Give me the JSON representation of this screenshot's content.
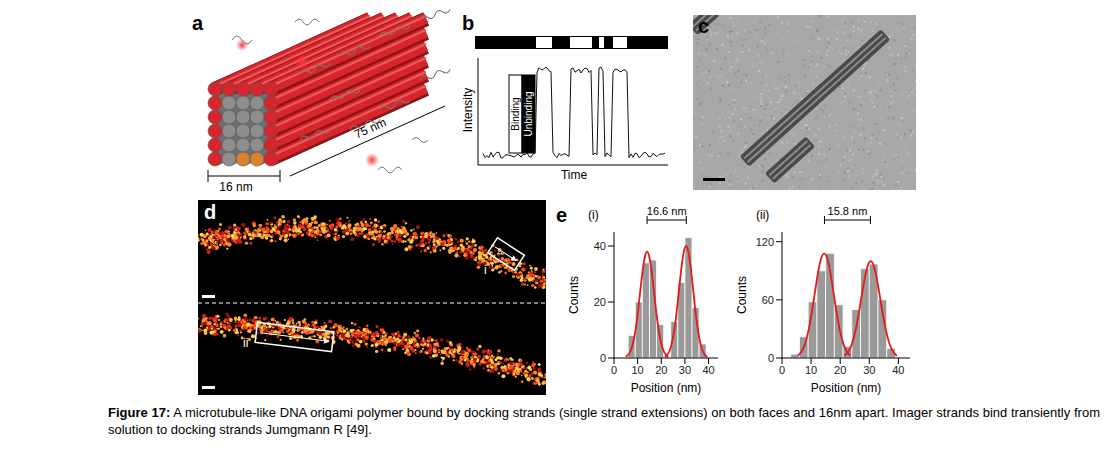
{
  "panels": {
    "a": {
      "label": "a",
      "width_label": "16 nm",
      "length_label": "75 nm"
    },
    "b": {
      "label": "b",
      "ylabel": "Intensity",
      "xlabel": "Time",
      "annotations": [
        "Binding",
        "Unbinding"
      ]
    },
    "c": {
      "label": "c"
    },
    "d": {
      "label": "d",
      "regions": [
        "i",
        "ii"
      ]
    },
    "e": {
      "label": "e"
    }
  },
  "chart_data": [
    {
      "type": "histogram",
      "title": "(i)",
      "xlabel": "Position (nm)",
      "ylabel": "Counts",
      "bins": [
        6,
        9,
        12,
        15,
        18,
        21,
        24,
        27,
        30,
        33,
        36,
        39
      ],
      "counts": [
        8,
        20,
        34,
        35,
        12,
        0,
        13,
        27,
        43,
        18,
        5
      ],
      "color": "#9a9a9a",
      "xlim": [
        0,
        44
      ],
      "xticks": [
        0,
        10,
        20,
        30,
        40
      ],
      "ylim": [
        0,
        45
      ],
      "yticks": [
        0,
        20,
        40
      ],
      "fits": [
        {
          "color": "#e31a1c",
          "x": [
            5,
            6,
            7,
            8,
            9,
            10,
            11,
            12,
            13,
            14,
            15,
            16,
            17,
            18,
            19,
            20,
            21,
            22,
            23
          ],
          "values": [
            0.4,
            1.1,
            2.5,
            5.1,
            9.5,
            15.6,
            23.1,
            30.4,
            35.9,
            38,
            35.9,
            30.4,
            23.1,
            15.6,
            9.5,
            5.1,
            2.5,
            1.1,
            0.4
          ]
        },
        {
          "color": "#e31a1c",
          "x": [
            21.5,
            22.5,
            23.5,
            24.5,
            25.5,
            26.5,
            27.5,
            28.5,
            29.5,
            30.5,
            31.5,
            32.5,
            33.5,
            34.5,
            35.5,
            36.5,
            37.5,
            38.5,
            39.5
          ],
          "values": [
            0.4,
            1.1,
            2.6,
            5.4,
            10,
            16.4,
            24.3,
            32,
            37.8,
            40,
            37.8,
            32,
            24.3,
            16.4,
            10,
            5.4,
            2.6,
            1.1,
            0.4
          ]
        }
      ],
      "annotation": {
        "text": "16.6 nm",
        "x": [
          14,
          30.6
        ]
      }
    },
    {
      "type": "histogram",
      "title": "(ii)",
      "xlabel": "Position (nm)",
      "ylabel": "Counts",
      "bins": [
        3,
        6,
        9,
        12,
        15,
        18,
        21,
        24,
        27,
        30,
        33,
        36,
        39
      ],
      "counts": [
        4,
        22,
        58,
        90,
        108,
        55,
        12,
        50,
        92,
        97,
        60,
        10
      ],
      "color": "#9a9a9a",
      "xlim": [
        0,
        44
      ],
      "xticks": [
        0,
        10,
        20,
        30,
        40
      ],
      "ylim": [
        0,
        130
      ],
      "yticks": [
        0,
        60,
        120
      ],
      "fits": [
        {
          "color": "#e31a1c",
          "x": [
            5.5,
            6.5,
            7.5,
            8.5,
            9.5,
            10.5,
            11.5,
            12.5,
            13.5,
            14.5,
            15.5,
            16.5,
            17.5,
            18.5,
            19.5,
            20.5,
            21.5,
            22.5,
            23.5
          ],
          "values": [
            2.6,
            5.7,
            11.3,
            20.7,
            34.2,
            51.8,
            71.4,
            89.9,
            103.1,
            108,
            103.1,
            89.9,
            71.4,
            51.8,
            34.2,
            20.7,
            11.3,
            5.7,
            2.6
          ]
        },
        {
          "color": "#e31a1c",
          "x": [
            21.5,
            22.5,
            23.5,
            24.5,
            25.5,
            26.5,
            27.5,
            28.5,
            29.5,
            30.5,
            31.5,
            32.5,
            33.5,
            34.5,
            35.5,
            36.5,
            37.5,
            38.5,
            39.5
          ],
          "values": [
            2.4,
            5.3,
            10.5,
            19.2,
            31.7,
            48,
            66.1,
            83.2,
            95.5,
            100,
            95.5,
            83.2,
            66.1,
            48,
            31.7,
            19.2,
            10.5,
            5.3,
            2.4
          ]
        }
      ],
      "annotation": {
        "text": "15.8 nm",
        "x": [
          14.6,
          30.4
        ]
      }
    }
  ],
  "caption": {
    "label": "Figure 17:",
    "text": "A microtubule-like DNA origami polymer bound by docking strands (single strand extensions) on both faces and 16nm apart. Imager strands bind transiently from solution to docking strands Jumgmann R [49]."
  }
}
